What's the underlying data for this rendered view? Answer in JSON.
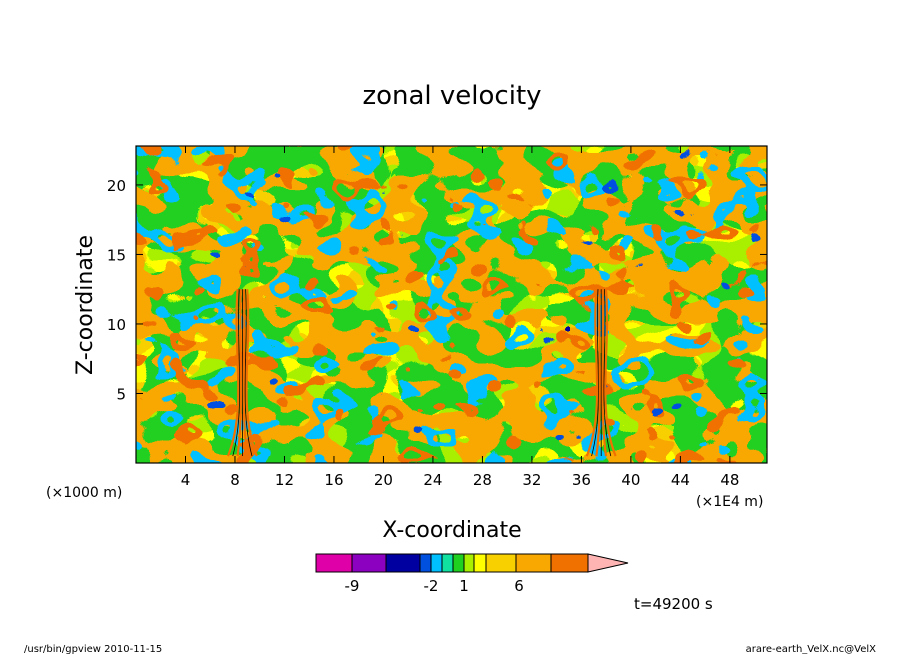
{
  "chart_data": {
    "type": "heatmap",
    "title": "zonal velocity",
    "xlabel": "X-coordinate",
    "ylabel": "Z-coordinate",
    "x_unit_left": "(×1000 m)",
    "x_unit_right": "(×1E4 m)",
    "xlim": [
      0,
      51
    ],
    "ylim": [
      0,
      22.8
    ],
    "xticks": [
      4,
      8,
      12,
      16,
      20,
      24,
      28,
      32,
      36,
      40,
      44,
      48
    ],
    "yticks": [
      5,
      10,
      15,
      20
    ],
    "colorbar": {
      "colors": [
        "#e000a8",
        "#8c00c0",
        "#0000a0",
        "#0050e0",
        "#00c0ff",
        "#10e0a0",
        "#20d020",
        "#a8f000",
        "#ffff00",
        "#f8d000",
        "#f8a800",
        "#f07000",
        "#f00000",
        "#ff8080",
        "#ffb4b4"
      ],
      "tick_labels": [
        "-9",
        "-2",
        "1",
        "6"
      ]
    },
    "time_label": "t=49200 s",
    "footer_left": "/usr/bin/gpview   2010-11-15",
    "footer_right": "arare-earth_VelX.nc@VelX"
  }
}
